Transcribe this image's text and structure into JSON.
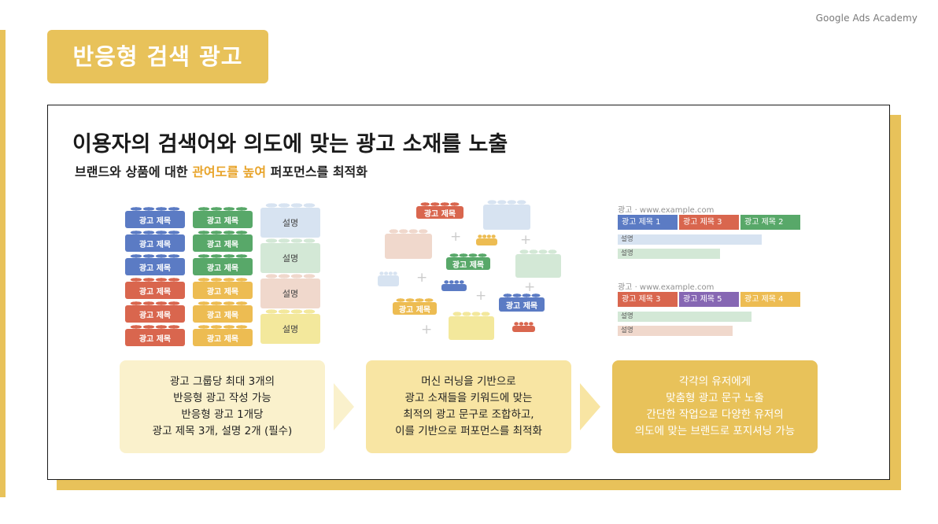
{
  "brand": "Google Ads Academy",
  "title": "반응형 검색 광고",
  "headline": "이용자의 검색어와 의도에 맞는 광고 소재를 노출",
  "subline": {
    "before": "브랜드와 상품에 대한 ",
    "highlight": "관여도를 높여",
    "after": " 퍼포먼스를 최적화"
  },
  "brick_headline_label": "광고 제목",
  "brick_description_label": "설명",
  "ads": [
    {
      "url": "광고 · www.example.com",
      "headlines": [
        "광고 제목 1",
        "광고 제목 3",
        "광고 제목 2"
      ],
      "descriptions": [
        "설명",
        "설명"
      ]
    },
    {
      "url": "광고 · www.example.com",
      "headlines": [
        "광고 제목 3",
        "광고 제목 5",
        "광고 제목 4"
      ],
      "descriptions": [
        "설명",
        "설명"
      ]
    }
  ],
  "steps": [
    [
      "광고 그룹당 최대 3개의",
      "반응형 광고 작성 가능",
      "반응형 광고 1개당",
      "광고 제목 3개, 설명 2개 (필수)"
    ],
    [
      "머신 러닝을 기반으로",
      "광고 소재들을 키워드에 맞는",
      "최적의 광고 문구로 조합하고,",
      "이를 기반으로 퍼포먼스를 최적화"
    ],
    [
      "각각의 유저에게",
      "맞춤형 광고 문구 노출",
      "간단한 작업으로 다양한 유저의",
      "의도에 맞는 브랜드로 포지셔닝 가능"
    ]
  ],
  "colors": {
    "accent": "#e8c25a",
    "highlight": "#e8a42a",
    "blue": "#5b7bc4",
    "green": "#58a869",
    "red": "#d9664e",
    "yellow": "#edbc52",
    "purple": "#8667b3",
    "light_blue": "#d7e3f1",
    "light_green": "#d3e8d6",
    "light_pink": "#f0d8cc",
    "light_yellow": "#f3e89c",
    "step1": "#faf1cc",
    "step2": "#f8e5a3",
    "step3": "#e8c25a"
  }
}
